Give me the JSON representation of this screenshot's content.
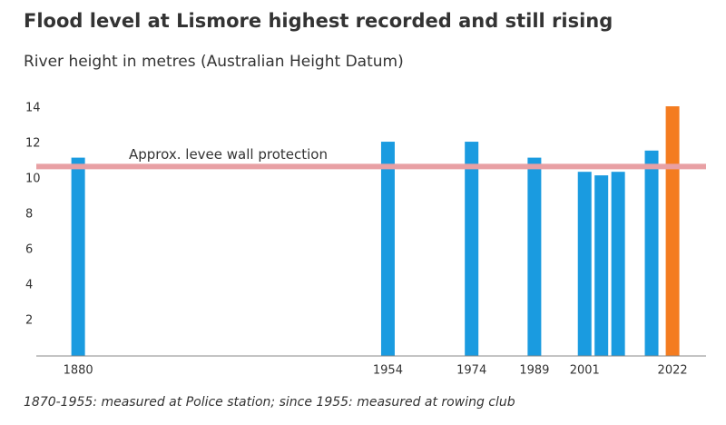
{
  "chart_data": {
    "type": "bar",
    "title": "Flood level at Lismore highest recorded and still rising",
    "subtitle": "River height in metres (Australian Height Datum)",
    "x": [
      1880,
      1954,
      1974,
      1989,
      2001,
      2005,
      2009,
      2017,
      2022
    ],
    "values": [
      11.2,
      12.1,
      12.1,
      11.2,
      10.4,
      10.2,
      10.4,
      11.6,
      14.1
    ],
    "colors": [
      "#1a9be0",
      "#1a9be0",
      "#1a9be0",
      "#1a9be0",
      "#1a9be0",
      "#1a9be0",
      "#1a9be0",
      "#1a9be0",
      "#f47c20"
    ],
    "xlim": [
      1870,
      2030
    ],
    "xticks": [
      1880,
      1954,
      1974,
      1989,
      2001,
      2022
    ],
    "ylim": [
      0,
      14
    ],
    "yticks": [
      2,
      4,
      6,
      8,
      10,
      12,
      14
    ],
    "reference_line": {
      "value": 10.7,
      "label": "Approx. levee wall protection",
      "color": "#e8a0a4"
    },
    "footnote": "1870-1955: measured at Police station; since 1955: measured at rowing club"
  }
}
